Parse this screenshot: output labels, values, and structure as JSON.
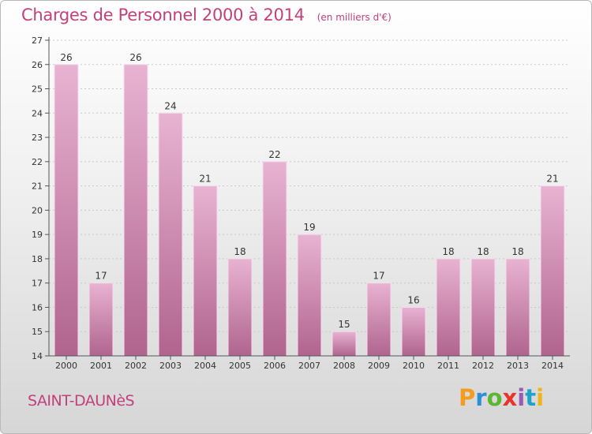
{
  "header": {
    "title": "Charges de Personnel 2000 à 2014",
    "unit": "(en milliers d'€)"
  },
  "footer": {
    "place": "SAINT-DAUNèS",
    "brand_letters": [
      "P",
      "r",
      "o",
      "x",
      "i",
      "t",
      "i"
    ],
    "brand_colors": [
      "#f39c1e",
      "#2b8fd6",
      "#5bb731",
      "#e8352c",
      "#9b59b6",
      "#1fa3c9",
      "#f0b41b"
    ]
  },
  "colors": {
    "bar_top": "#e8b3d2",
    "bar_bottom": "#b0648e",
    "bar_edge": "#f6dcec",
    "axis": "#555555",
    "grid": "#c8c8c8",
    "text": "#333333"
  },
  "chart_data": {
    "type": "bar",
    "categories": [
      "2000",
      "2001",
      "2002",
      "2003",
      "2004",
      "2005",
      "2006",
      "2007",
      "2008",
      "2009",
      "2010",
      "2011",
      "2012",
      "2013",
      "2014"
    ],
    "values": [
      26,
      17,
      26,
      24,
      21,
      18,
      22,
      19,
      15,
      17,
      16,
      18,
      18,
      18,
      21
    ],
    "data_labels": [
      "26",
      "17",
      "26",
      "24",
      "21",
      "18",
      "22",
      "19",
      "15",
      "17",
      "16",
      "18",
      "18",
      "18",
      "21"
    ],
    "yticks": [
      "14",
      "15",
      "16",
      "17",
      "18",
      "19",
      "20",
      "21",
      "22",
      "23",
      "24",
      "25",
      "26",
      "27"
    ],
    "ylim": [
      14,
      27
    ],
    "grid": true,
    "legend": "none"
  }
}
